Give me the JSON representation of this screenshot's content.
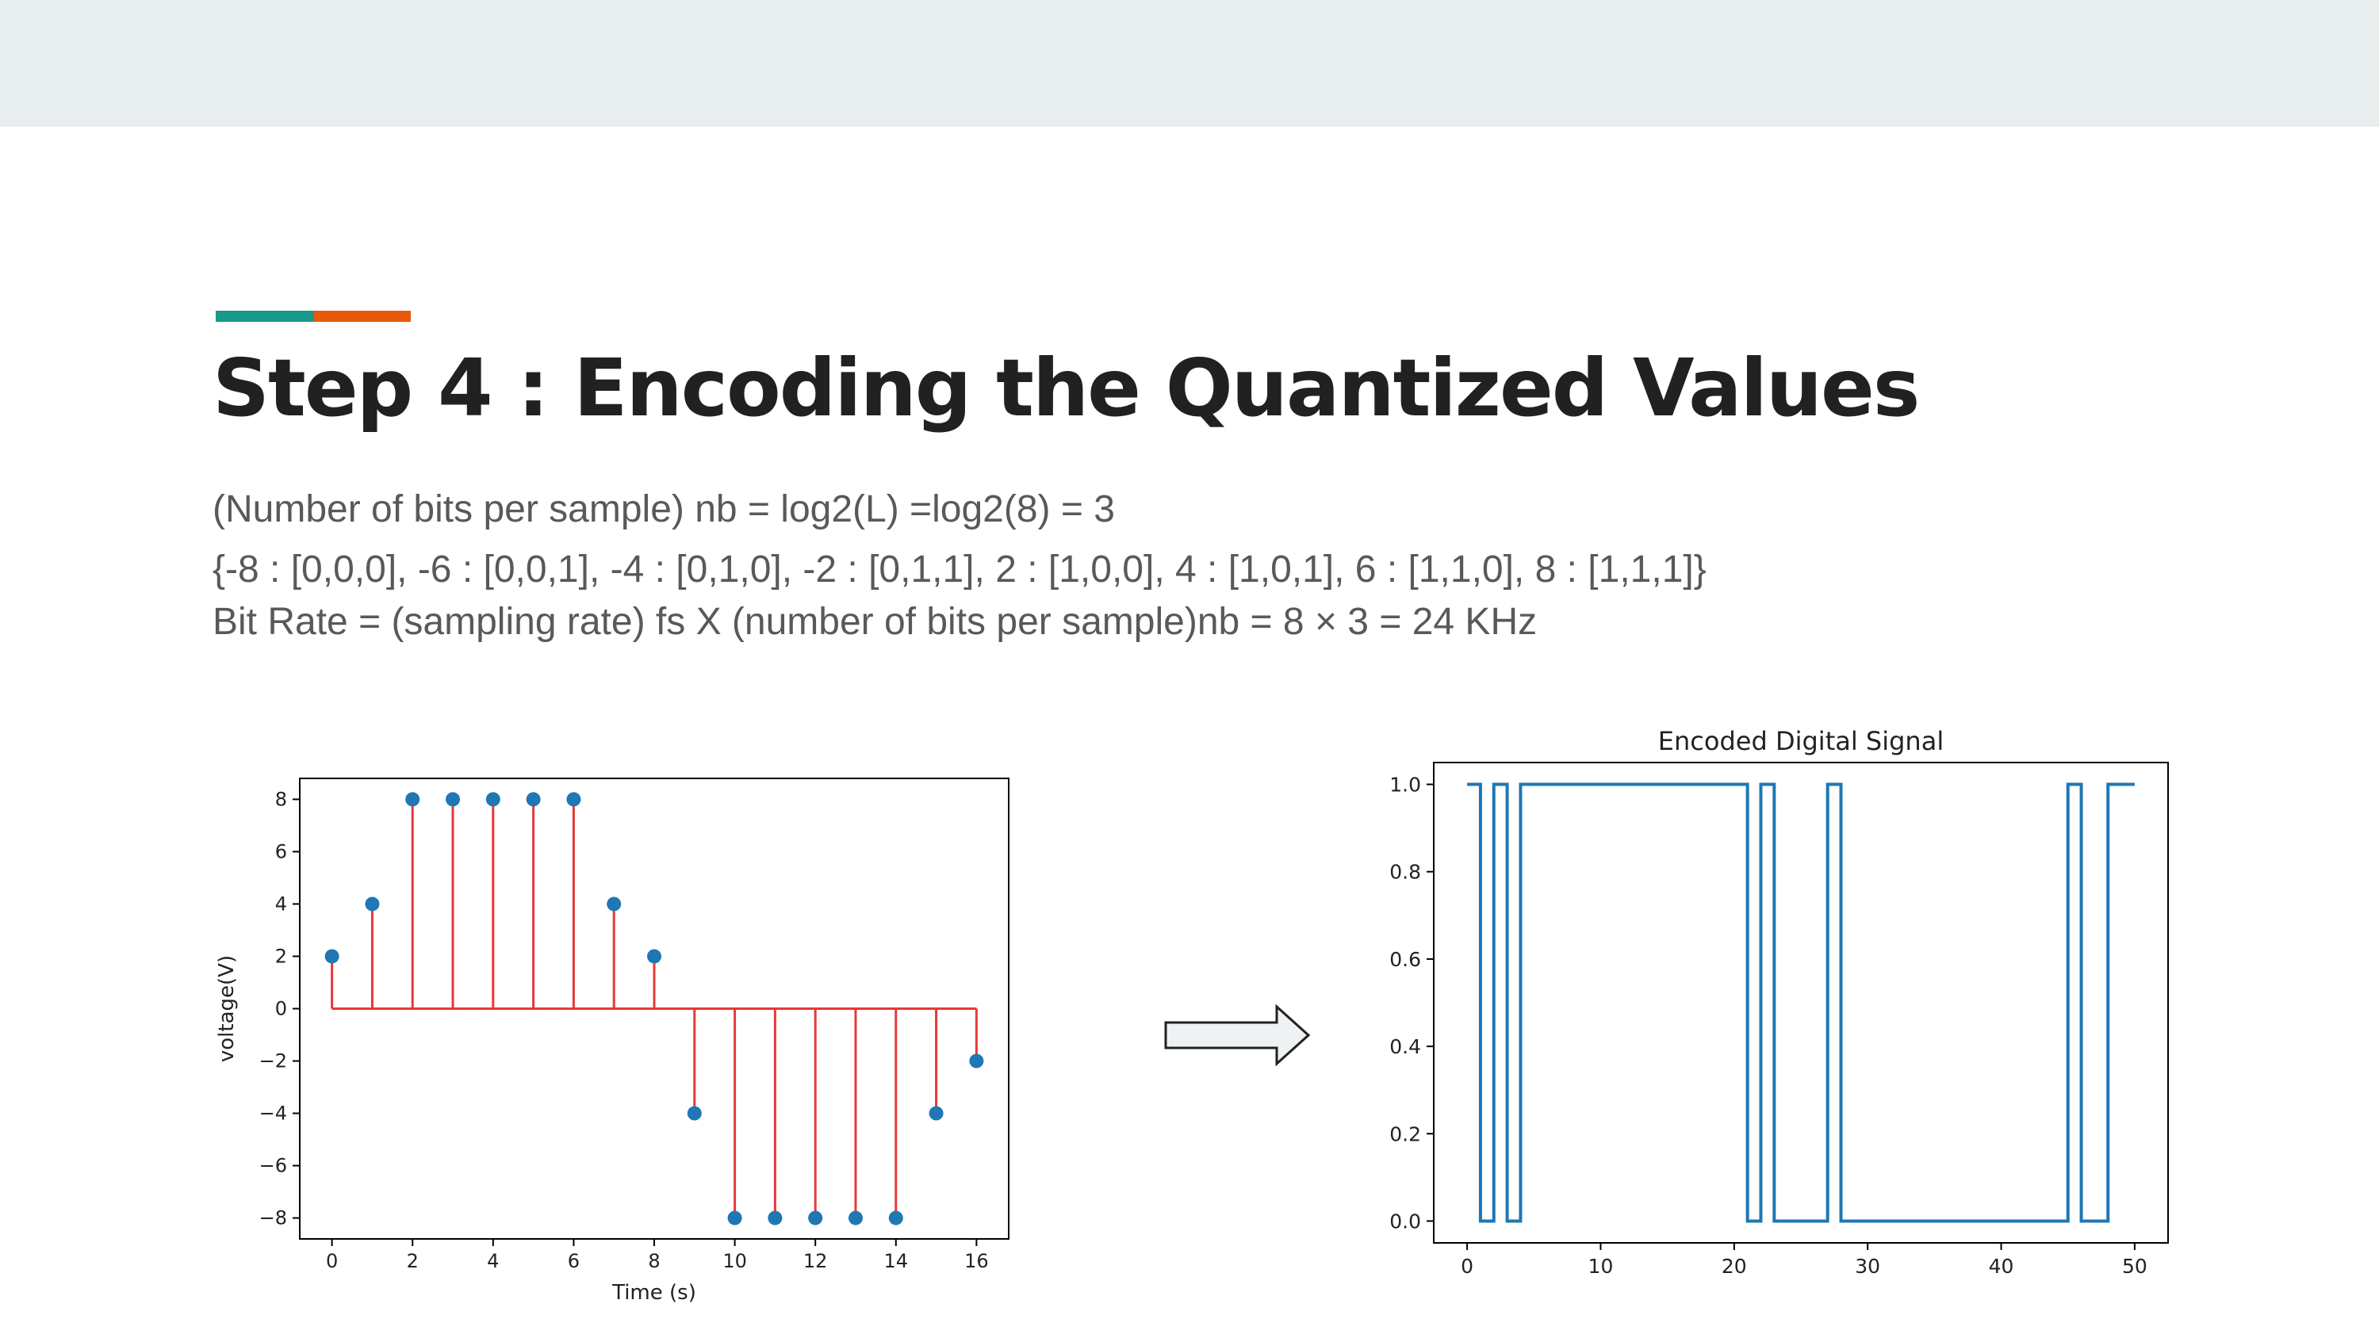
{
  "slide": {
    "title": "Step 4 : Encoding the Quantized Values",
    "lines": [
      "(Number of bits per sample) nb = log2(L) =log2(8) = 3",
      "{-8 : [0,0,0], -6 : [0,0,1], -4 : [0,1,0], -2 : [0,1,1], 2 : [1,0,0], 4 : [1,0,1], 6 : [1,1,0], 8 : [1,1,1]}",
      "Bit Rate = (sampling rate) fs X (number of bits per sample)nb = 8  × 3 = 24 KHz"
    ],
    "colors": {
      "topbar": "#e8eded",
      "accent_teal": "#1a9988",
      "accent_orange": "#e8590c",
      "title": "#212121",
      "body_text": "#595959"
    },
    "arrow": {
      "icon": "right-arrow-icon"
    }
  },
  "chart_data": [
    {
      "type": "stem",
      "title": "",
      "xlabel": "Time (s)",
      "ylabel": "voltage(V)",
      "x": [
        0,
        1,
        2,
        3,
        4,
        5,
        6,
        7,
        8,
        9,
        10,
        11,
        12,
        13,
        14,
        15,
        16
      ],
      "values": [
        2,
        4,
        8,
        8,
        8,
        8,
        8,
        4,
        2,
        -4,
        -8,
        -8,
        -8,
        -8,
        -8,
        -4,
        -2
      ],
      "xlim": [
        -0.8,
        16.8
      ],
      "ylim": [
        -8.8,
        8.8
      ],
      "xticks": [
        0,
        2,
        4,
        6,
        8,
        10,
        12,
        14,
        16
      ],
      "yticks": [
        -8,
        -6,
        -4,
        -2,
        0,
        2,
        4,
        6,
        8
      ],
      "baseline": 0,
      "colors": {
        "stem": "#e8383a",
        "marker": "#1f77b4",
        "baseline": "#e8383a"
      },
      "grid": false
    },
    {
      "type": "line",
      "drawstyle": "steps-post",
      "title": "Encoded Digital Signal",
      "xlabel": "",
      "ylabel": "",
      "x": [
        0,
        1,
        2,
        3,
        4,
        5,
        6,
        7,
        8,
        9,
        10,
        11,
        12,
        13,
        14,
        15,
        16,
        17,
        18,
        19,
        20,
        21,
        22,
        23,
        24,
        25,
        26,
        27,
        28,
        29,
        30,
        31,
        32,
        33,
        34,
        35,
        36,
        37,
        38,
        39,
        40,
        41,
        42,
        43,
        44,
        45,
        46,
        47,
        48,
        49,
        50
      ],
      "values": [
        1,
        0,
        1,
        0,
        1,
        1,
        1,
        1,
        1,
        1,
        1,
        1,
        1,
        1,
        1,
        1,
        1,
        1,
        1,
        1,
        1,
        0,
        1,
        0,
        0,
        0,
        0,
        1,
        0,
        0,
        0,
        0,
        0,
        0,
        0,
        0,
        0,
        0,
        0,
        0,
        0,
        0,
        0,
        0,
        0,
        1,
        0,
        0,
        1,
        1,
        1
      ],
      "xlim": [
        -2.5,
        52.5
      ],
      "ylim": [
        -0.05,
        1.05
      ],
      "xticks": [
        0,
        10,
        20,
        30,
        40,
        50
      ],
      "yticks": [
        0.0,
        0.2,
        0.4,
        0.6,
        0.8,
        1.0
      ],
      "ytick_labels": [
        "0.0",
        "0.2",
        "0.4",
        "0.6",
        "0.8",
        "1.0"
      ],
      "colors": {
        "line": "#1f77b4"
      },
      "grid": false
    }
  ]
}
